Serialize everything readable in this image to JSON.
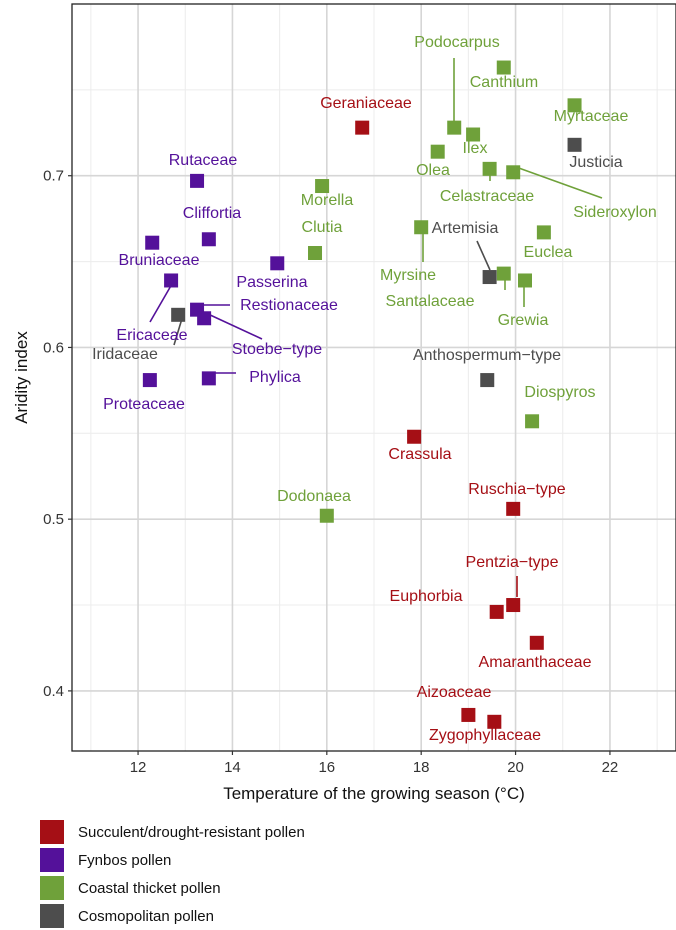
{
  "chart_data": {
    "type": "scatter",
    "xlabel": "Temperature of the growing season (°C)",
    "ylabel": "Aridity index",
    "xlim": [
      10.6,
      23.4
    ],
    "ylim": [
      0.365,
      0.8
    ],
    "x_ticks": [
      12,
      14,
      16,
      18,
      20,
      22
    ],
    "y_ticks": [
      0.4,
      0.5,
      0.6,
      0.7
    ],
    "grid": true,
    "legend_position": "bottom",
    "categories": [
      {
        "key": "succulent",
        "label": "Succulent/drought-resistant pollen",
        "color": "#a50f15"
      },
      {
        "key": "fynbos",
        "label": "Fynbos pollen",
        "color": "#54119a"
      },
      {
        "key": "thicket",
        "label": "Coastal thicket pollen",
        "color": "#6fa13a"
      },
      {
        "key": "cosmo",
        "label": "Cosmopolitan pollen",
        "color": "#4d4d4d"
      }
    ],
    "points": [
      {
        "name": "Geraniaceae",
        "x": 16.75,
        "y": 0.728,
        "group": "succulent"
      },
      {
        "name": "Crassula",
        "x": 17.85,
        "y": 0.548,
        "group": "succulent"
      },
      {
        "name": "Ruschia−type",
        "x": 19.95,
        "y": 0.506,
        "group": "succulent"
      },
      {
        "name": "Pentzia−type",
        "x": 19.95,
        "y": 0.45,
        "group": "succulent"
      },
      {
        "name": "Euphorbia",
        "x": 19.6,
        "y": 0.446,
        "group": "succulent"
      },
      {
        "name": "Amaranthaceae",
        "x": 20.45,
        "y": 0.428,
        "group": "succulent"
      },
      {
        "name": "Aizoaceae",
        "x": 19.0,
        "y": 0.386,
        "group": "succulent"
      },
      {
        "name": "Zygophyllaceae",
        "x": 19.55,
        "y": 0.382,
        "group": "succulent"
      },
      {
        "name": "Rutaceae",
        "x": 13.25,
        "y": 0.697,
        "group": "fynbos"
      },
      {
        "name": "Cliffortia",
        "x": 13.5,
        "y": 0.663,
        "group": "fynbos"
      },
      {
        "name": "Bruniaceae",
        "x": 12.3,
        "y": 0.661,
        "group": "fynbos"
      },
      {
        "name": "Passerina",
        "x": 14.95,
        "y": 0.649,
        "group": "fynbos"
      },
      {
        "name": "Ericaceae",
        "x": 12.7,
        "y": 0.639,
        "group": "fynbos"
      },
      {
        "name": "Restionaceae",
        "x": 13.25,
        "y": 0.622,
        "group": "fynbos"
      },
      {
        "name": "Stoebe−type",
        "x": 13.4,
        "y": 0.617,
        "group": "fynbos"
      },
      {
        "name": "Phylica",
        "x": 13.5,
        "y": 0.582,
        "group": "fynbos"
      },
      {
        "name": "Proteaceae",
        "x": 12.25,
        "y": 0.581,
        "group": "fynbos"
      },
      {
        "name": "Podocarpus",
        "x": 18.7,
        "y": 0.728,
        "group": "thicket"
      },
      {
        "name": "Canthium",
        "x": 19.75,
        "y": 0.763,
        "group": "thicket"
      },
      {
        "name": "Myrtaceae",
        "x": 21.25,
        "y": 0.741,
        "group": "thicket"
      },
      {
        "name": "Ilex",
        "x": 19.1,
        "y": 0.724,
        "group": "thicket"
      },
      {
        "name": "Olea",
        "x": 18.35,
        "y": 0.714,
        "group": "thicket"
      },
      {
        "name": "Celastraceae",
        "x": 19.45,
        "y": 0.704,
        "group": "thicket"
      },
      {
        "name": "Sideroxylon",
        "x": 19.95,
        "y": 0.702,
        "group": "thicket"
      },
      {
        "name": "Morella",
        "x": 15.9,
        "y": 0.694,
        "group": "thicket"
      },
      {
        "name": "Myrsine",
        "x": 18.0,
        "y": 0.67,
        "group": "thicket"
      },
      {
        "name": "Euclea",
        "x": 20.6,
        "y": 0.667,
        "group": "thicket"
      },
      {
        "name": "Clutia",
        "x": 15.75,
        "y": 0.655,
        "group": "thicket"
      },
      {
        "name": "Santalaceae",
        "x": 19.75,
        "y": 0.643,
        "group": "thicket"
      },
      {
        "name": "Grewia",
        "x": 20.2,
        "y": 0.639,
        "group": "thicket"
      },
      {
        "name": "Diospyros",
        "x": 20.35,
        "y": 0.557,
        "group": "thicket"
      },
      {
        "name": "Dodonaea",
        "x": 16.0,
        "y": 0.502,
        "group": "thicket"
      },
      {
        "name": "Justicia",
        "x": 21.25,
        "y": 0.718,
        "group": "cosmo"
      },
      {
        "name": "Artemisia",
        "x": 19.45,
        "y": 0.641,
        "group": "cosmo"
      },
      {
        "name": "Iridaceae",
        "x": 12.85,
        "y": 0.619,
        "group": "cosmo"
      },
      {
        "name": "Anthospermum−type",
        "x": 19.4,
        "y": 0.581,
        "group": "cosmo"
      }
    ]
  }
}
